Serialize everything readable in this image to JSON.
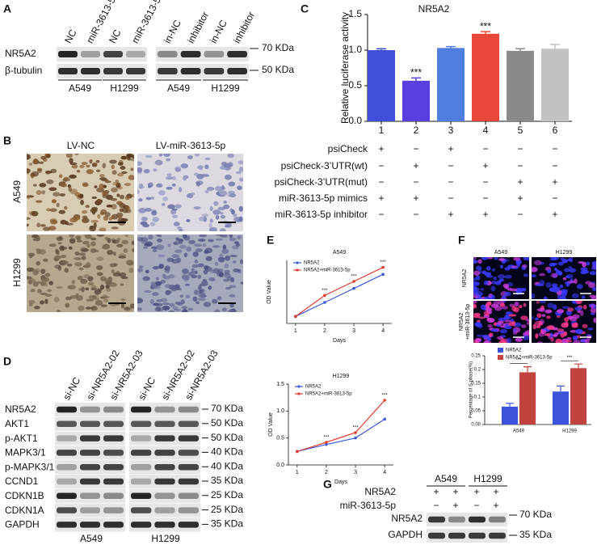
{
  "panel_labels": [
    "A",
    "B",
    "C",
    "D",
    "E",
    "F",
    "G"
  ],
  "panel_a": {
    "lanes": [
      "NC",
      "miR-3613-5p",
      "NC",
      "miR-3613-5p",
      "in-NC",
      "inhibitor",
      "in-NC",
      "inhibitor"
    ],
    "rows": [
      "NR5A2",
      "β-tubulin"
    ],
    "markers": [
      "70 KDa",
      "50 KDa"
    ],
    "groups": [
      "A549",
      "H1299",
      "A549",
      "H1299"
    ]
  },
  "panel_b": {
    "columns": [
      "LV-NC",
      "LV-miR-3613-5p"
    ],
    "rows": [
      "A549",
      "H1299"
    ]
  },
  "panel_c_conditions": [
    {
      "label": "psiCheck",
      "signs": [
        "+",
        "−",
        "+",
        "−",
        "−",
        "−"
      ]
    },
    {
      "label": "psiCheck-3’UTR(wt)",
      "signs": [
        "−",
        "+",
        "−",
        "+",
        "−",
        "−"
      ]
    },
    {
      "label": "psiCheck-3’UTR(mut)",
      "signs": [
        "−",
        "−",
        "−",
        "−",
        "+",
        "+"
      ]
    },
    {
      "label": "miR-3613-5p mimics",
      "signs": [
        "+",
        "+",
        "−",
        "−",
        "+",
        "−"
      ]
    },
    {
      "label": "miR-3613-5p inhibitor",
      "signs": [
        "−",
        "−",
        "+",
        "+",
        "−",
        "+"
      ]
    }
  ],
  "panel_d": {
    "lanes": [
      "si-NC",
      "si-NR5A2-02",
      "si-NR5A2-03",
      "si-NC",
      "si-NR5A2-02",
      "si-NR5A2-03"
    ],
    "rows": [
      "NR5A2",
      "AKT1",
      "p-AKT1",
      "MAPK3/1",
      "p-MAPK3/1",
      "CCND1",
      "CDKN1B",
      "CDKN1A",
      "GAPDH"
    ],
    "markers": [
      "70 KDa",
      "50 KDa",
      "50 KDa",
      "40 KDa",
      "40 KDa",
      "35 KDa",
      "25 KDa",
      "25 KDa",
      "35 KDa"
    ],
    "groups": [
      "A549",
      "H1299"
    ]
  },
  "panel_f_images": {
    "columns": [
      "A549",
      "H1299"
    ],
    "rows": [
      [
        "NR5A2"
      ],
      [
        "NR5A2",
        "+miR-3613-5p"
      ]
    ]
  },
  "panel_g": {
    "groups": [
      "A549",
      "H1299"
    ],
    "conditions": [
      {
        "label": "NR5A2",
        "signs": [
          "+",
          "+",
          "+",
          "+"
        ]
      },
      {
        "label": "miR-3613-5p",
        "signs": [
          "−",
          "+",
          "−",
          "+"
        ]
      }
    ],
    "rows": [
      "NR5A2",
      "GAPDH"
    ],
    "markers": [
      "70 KDa",
      "35 KDa"
    ]
  },
  "chart_data": [
    {
      "type": "bar",
      "title": "NR5A2",
      "y_label": "Relative luciferase activity",
      "categories": [
        "1",
        "2",
        "3",
        "4",
        "5",
        "6"
      ],
      "values": [
        1.0,
        0.57,
        1.03,
        1.23,
        0.99,
        1.02
      ],
      "errors": [
        0.02,
        0.04,
        0.02,
        0.03,
        0.03,
        0.06
      ],
      "colors": [
        "#3f4fd8",
        "#5a3fe0",
        "#4f7ee0",
        "#e8473a",
        "#8a8a8a",
        "#c2c2c2"
      ],
      "value_annotations": [
        null,
        "***",
        null,
        "***",
        null,
        null
      ],
      "ylim": [
        0,
        1.5
      ],
      "yticks": [
        {
          "value": 0,
          "label": "0.0"
        },
        {
          "value": 0.5,
          "label": "0.5"
        },
        {
          "value": 1,
          "label": "1.0"
        },
        {
          "value": 1.5,
          "label": "1.5"
        }
      ]
    },
    {
      "type": "line",
      "title": "A549",
      "x_label": "Days",
      "y_label": "OD Value",
      "x": [
        1,
        2,
        3,
        4
      ],
      "xlim": [
        0.7,
        4.3
      ],
      "xticks": [
        1,
        2,
        3,
        4
      ],
      "ylim": [
        0.2,
        0.65
      ],
      "series": [
        {
          "name": "NR5A2",
          "color": "#3b5bdb",
          "values": [
            0.25,
            0.35,
            0.45,
            0.55
          ]
        },
        {
          "name": "NR5A2+miR-3613-5p",
          "color": "#e03c31",
          "values": [
            0.25,
            0.4,
            0.5,
            0.6
          ]
        }
      ],
      "point_annotations": [
        null,
        "***",
        "***",
        "***"
      ]
    },
    {
      "type": "line",
      "title": "H1299",
      "x_label": "Days",
      "y_label": "OD Value",
      "x": [
        1,
        2,
        3,
        4
      ],
      "xlim": [
        0.7,
        4.3
      ],
      "xticks": [
        1,
        2,
        3,
        4
      ],
      "ylim": [
        0,
        1.5
      ],
      "yticks": [
        {
          "value": 0,
          "label": "0.0"
        },
        {
          "value": 0.5,
          "label": "0.5"
        },
        {
          "value": 1,
          "label": "1.0"
        },
        {
          "value": 1.5,
          "label": "1.5"
        }
      ],
      "series": [
        {
          "name": "NR5A2",
          "color": "#3b5bdb",
          "values": [
            0.25,
            0.38,
            0.5,
            0.85
          ]
        },
        {
          "name": "NR5A2+miR-3613-5p",
          "color": "#e03c31",
          "values": [
            0.25,
            0.42,
            0.6,
            1.2
          ]
        }
      ],
      "point_annotations": [
        null,
        "***",
        "***",
        "***"
      ]
    },
    {
      "type": "grouped_bar",
      "y_label": "Percentage of S phase(%)",
      "categories": [
        "A549",
        "H1299"
      ],
      "ylim": [
        0,
        0.25
      ],
      "yticks": [
        {
          "value": 0,
          "label": "0.00"
        },
        0.05,
        0.1,
        0.15,
        0.2,
        0.25
      ],
      "series": [
        {
          "name": "NR5A2",
          "color": "#3b52d9",
          "values": [
            0.065,
            0.12
          ],
          "errors": [
            0.012,
            0.02
          ]
        },
        {
          "name": "NR5A2+miR-3613-5p",
          "color": "#c0443d",
          "values": [
            0.19,
            0.205
          ],
          "errors": [
            0.02,
            0.015
          ]
        }
      ],
      "category_annotations": [
        "***",
        "***"
      ]
    }
  ]
}
